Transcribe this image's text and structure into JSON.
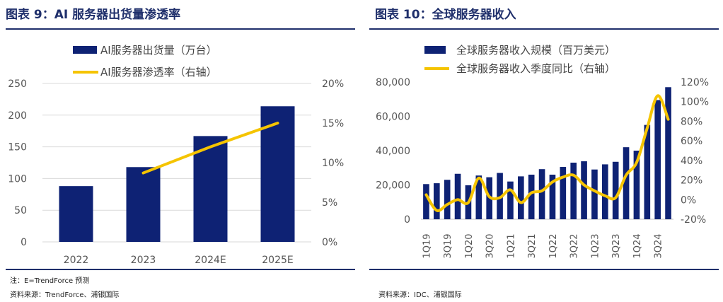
{
  "left": {
    "title": "图表 9：AI 服务器出货量渗透率",
    "note": "注：E=TrendForce 预测",
    "source": "资料来源：TrendForce、浦银国际"
  },
  "right": {
    "title": "图表 10：全球服务器收入",
    "source": "资料来源：IDC、浦银国际"
  },
  "chart_data": [
    {
      "type": "bar+line",
      "title": "",
      "categories": [
        "2022",
        "2023",
        "2024E",
        "2025E"
      ],
      "series": [
        {
          "name": "AI服务器出货量（万台）",
          "kind": "bar",
          "axis": "left",
          "values": [
            88,
            118,
            167,
            214
          ]
        },
        {
          "name": "AI服务器渗透率（右轴）",
          "kind": "line",
          "axis": "right",
          "values": [
            null,
            0.087,
            0.12,
            0.15
          ]
        }
      ],
      "y_left": {
        "min": 0,
        "max": 250,
        "ticks": [
          0,
          50,
          100,
          150,
          200,
          250
        ],
        "tick_labels": [
          "0",
          "50",
          "100",
          "150",
          "200",
          "250"
        ]
      },
      "y_right": {
        "min": 0,
        "max": 0.2,
        "ticks": [
          0,
          0.05,
          0.1,
          0.15,
          0.2
        ],
        "tick_labels": [
          "0%",
          "5%",
          "10%",
          "15%",
          "20%"
        ]
      },
      "colors": {
        "bar": "#0e2274",
        "line": "#f5c400"
      },
      "grid": true,
      "legend": "top"
    },
    {
      "type": "bar+line",
      "title": "",
      "categories": [
        "1Q19",
        "2Q19",
        "3Q19",
        "4Q19",
        "1Q20",
        "2Q20",
        "3Q20",
        "4Q20",
        "1Q21",
        "2Q21",
        "3Q21",
        "4Q21",
        "1Q22",
        "2Q22",
        "3Q22",
        "4Q22",
        "1Q23",
        "2Q23",
        "3Q23",
        "4Q23",
        "1Q24",
        "2Q24",
        "3Q24",
        "4Q24"
      ],
      "x_tick_labels": [
        "1Q19",
        "3Q19",
        "1Q20",
        "3Q20",
        "1Q21",
        "3Q21",
        "1Q22",
        "3Q22",
        "1Q23",
        "3Q23",
        "1Q24",
        "3Q24"
      ],
      "series": [
        {
          "name": "全球服务器收入规模（百万美元）",
          "kind": "bar",
          "axis": "left",
          "values": [
            20500,
            21000,
            23000,
            26500,
            19800,
            25500,
            24500,
            27000,
            22000,
            25000,
            26000,
            29200,
            26000,
            30500,
            33000,
            33800,
            29000,
            32000,
            33500,
            42000,
            40000,
            55000,
            69500,
            77000
          ]
        },
        {
          "name": "全球服务器收入季度同比（右轴）",
          "kind": "line",
          "axis": "right",
          "values": [
            0.05,
            -0.11,
            -0.05,
            0.0,
            -0.03,
            0.22,
            0.03,
            0.02,
            0.1,
            -0.03,
            0.07,
            0.09,
            0.18,
            0.23,
            0.25,
            0.15,
            0.09,
            0.04,
            0.02,
            0.25,
            0.38,
            0.73,
            1.06,
            0.82
          ]
        }
      ],
      "y_left": {
        "min": 0,
        "max": 80000,
        "ticks": [
          0,
          20000,
          40000,
          60000,
          80000
        ],
        "tick_labels": [
          "0",
          "20,000",
          "40,000",
          "60,000",
          "80,000"
        ]
      },
      "y_right": {
        "min": -0.2,
        "max": 1.2,
        "ticks": [
          -0.2,
          0,
          0.2,
          0.4,
          0.6,
          0.8,
          1.0,
          1.2
        ],
        "tick_labels": [
          "-20%",
          "0%",
          "20%",
          "40%",
          "60%",
          "80%",
          "100%",
          "120%"
        ]
      },
      "colors": {
        "bar": "#0e2274",
        "line": "#f5c400"
      },
      "grid": false,
      "legend": "top"
    }
  ]
}
